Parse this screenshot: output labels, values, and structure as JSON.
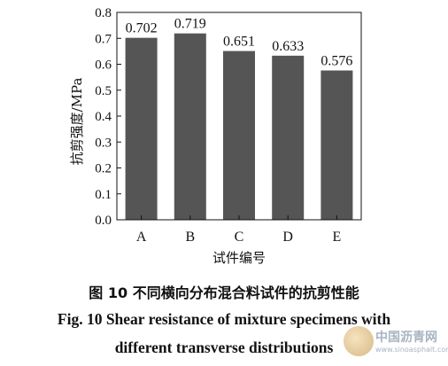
{
  "chart_data": {
    "type": "bar",
    "categories": [
      "A",
      "B",
      "C",
      "D",
      "E"
    ],
    "values": [
      0.702,
      0.719,
      0.651,
      0.633,
      0.576
    ],
    "data_labels": [
      "0.702",
      "0.719",
      "0.651",
      "0.633",
      "0.576"
    ],
    "xlabel": "试件编号",
    "ylabel": "抗剪强度/MPa",
    "ylim": [
      0.0,
      0.8
    ],
    "yticks": [
      0.0,
      0.1,
      0.2,
      0.3,
      0.4,
      0.5,
      0.6,
      0.7,
      0.8
    ],
    "ytick_labels": [
      "0.0",
      "0.1",
      "0.2",
      "0.3",
      "0.4",
      "0.5",
      "0.6",
      "0.7",
      "0.8"
    ],
    "grid": false,
    "bar_color": "#555555"
  },
  "caption": {
    "cn": "图 10    不同横向分布混合料试件的抗剪性能",
    "en_line1": "Fig. 10    Shear resistance of mixture specimens with",
    "en_line2": "different transverse distributions"
  },
  "watermark": {
    "text": "中国沥青网",
    "url": "www.sinoasphalt.com"
  }
}
